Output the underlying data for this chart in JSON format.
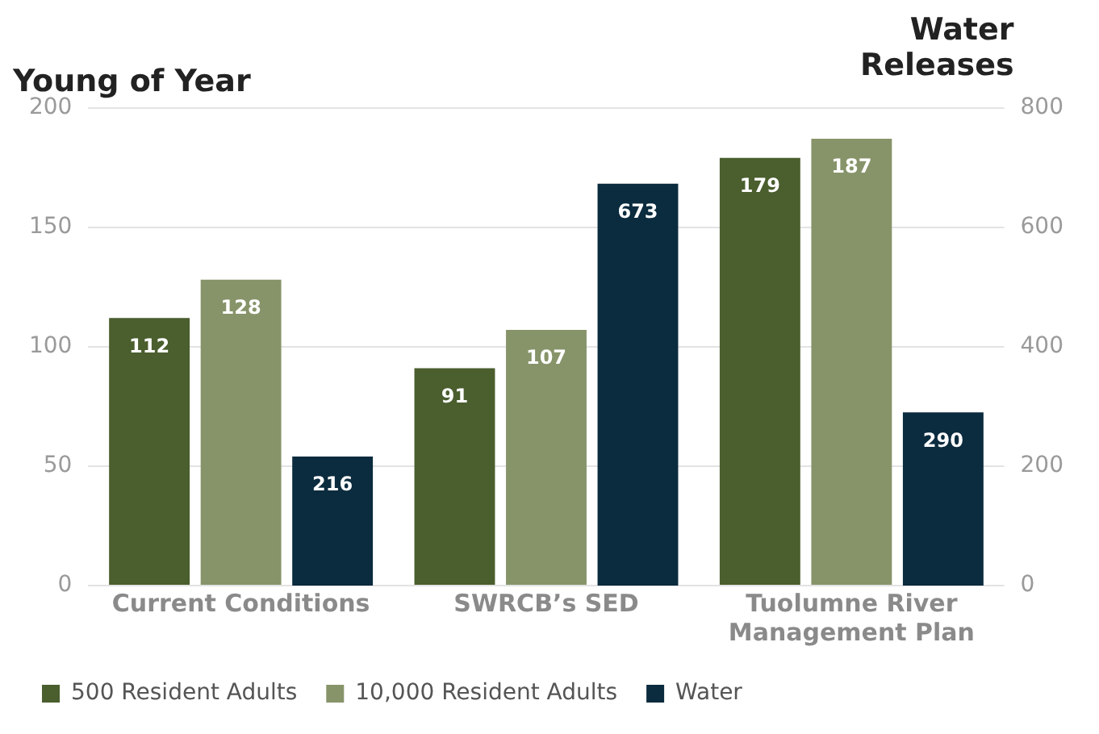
{
  "chart_data": {
    "type": "bar",
    "title": "Young of Year",
    "y2label": "Water Releases",
    "categories": [
      "Current Conditions",
      "SWRCB’s SED",
      "Tuolumne River Management Plan"
    ],
    "series": [
      {
        "name": "500 Resident Adults",
        "color": "#4a5e2e",
        "values": [
          112,
          91,
          179
        ]
      },
      {
        "name": "10,000 Resident Adults",
        "color": "#87946a",
        "values": [
          128,
          107,
          187
        ]
      },
      {
        "name": "Water",
        "color": "#0b2b3e",
        "values": [
          216,
          673,
          290
        ],
        "axis": "y2"
      }
    ],
    "ylim": [
      0,
      200
    ],
    "yticks": [
      0,
      50,
      100,
      150,
      200
    ],
    "y2lim": [
      0,
      800
    ],
    "y2ticks": [
      0,
      200,
      400,
      600,
      800
    ],
    "grid": "y",
    "legend": "bottom",
    "data_labels": true
  }
}
